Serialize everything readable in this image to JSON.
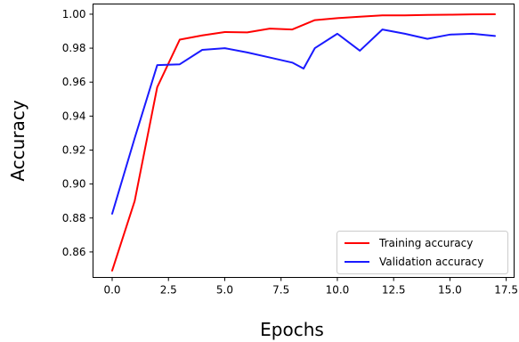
{
  "chart_data": {
    "type": "line",
    "xlabel": "Epochs",
    "ylabel": "Accuracy",
    "xlim": [
      -0.85,
      17.85
    ],
    "ylim": [
      0.845,
      1.006
    ],
    "xticks": [
      "0.0",
      "2.5",
      "5.0",
      "7.5",
      "10.0",
      "12.5",
      "15.0",
      "17.5"
    ],
    "yticks": [
      "0.86",
      "0.88",
      "0.90",
      "0.92",
      "0.94",
      "0.96",
      "0.98",
      "1.00"
    ],
    "legend_position": "lower-right",
    "grid": false,
    "series": [
      {
        "name": "Training accuracy",
        "color": "#ff0000",
        "x": [
          0,
          1,
          2,
          3,
          4,
          5,
          6,
          7,
          8,
          9,
          10,
          11,
          12,
          13,
          14,
          15,
          16,
          17
        ],
        "values": [
          0.849,
          0.89,
          0.957,
          0.985,
          0.9875,
          0.9895,
          0.9893,
          0.9915,
          0.991,
          0.9965,
          0.9977,
          0.9985,
          0.9993,
          0.9993,
          0.9996,
          0.9997,
          0.9999,
          1.0
        ]
      },
      {
        "name": "Validation accuracy",
        "color": "#1a1aff",
        "x": [
          0,
          1,
          2,
          3,
          4,
          5,
          6,
          7,
          8,
          8.5,
          9,
          10,
          11,
          12,
          13,
          14,
          15,
          16,
          17
        ],
        "values": [
          0.8825,
          0.927,
          0.97,
          0.9705,
          0.979,
          0.98,
          0.9775,
          0.9745,
          0.9715,
          0.968,
          0.98,
          0.9885,
          0.9785,
          0.991,
          0.9885,
          0.9855,
          0.988,
          0.9885,
          0.9872
        ]
      }
    ]
  }
}
